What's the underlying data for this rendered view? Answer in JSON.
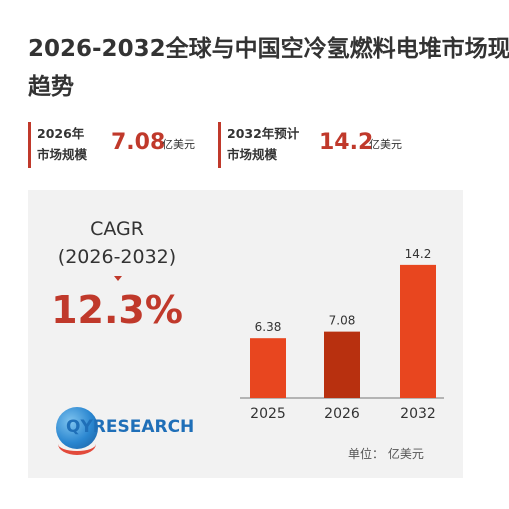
{
  "title": {
    "line1": "2026-2032全球与中国空冷氢燃料电堆市场现",
    "line2": "趋势"
  },
  "stats": [
    {
      "label_line1": "2026年",
      "label_line2": "市场规模",
      "value": "7.08",
      "unit": "亿美元"
    },
    {
      "label_line1": "2032年预计",
      "label_line2": "市场规模",
      "value": "14.2",
      "unit": "亿美元"
    }
  ],
  "cagr": {
    "label": "CAGR",
    "period": "(2026-2032)",
    "value": "12.3%"
  },
  "logo": {
    "text": "QYRESEARCH"
  },
  "unit_label": "单位： 亿美元",
  "colors": {
    "accent": "#c0392b",
    "bar": "#e8461f",
    "bar_highlight": "#b8300f",
    "panel": "#f2f2f2"
  },
  "chart_data": {
    "type": "bar",
    "categories": [
      "2025",
      "2026",
      "2032"
    ],
    "values": [
      6.38,
      7.08,
      14.2
    ],
    "data_labels": [
      "6.38",
      "7.08",
      "14.2"
    ],
    "ylim": [
      0,
      16
    ],
    "grid": false,
    "legend": "none"
  }
}
